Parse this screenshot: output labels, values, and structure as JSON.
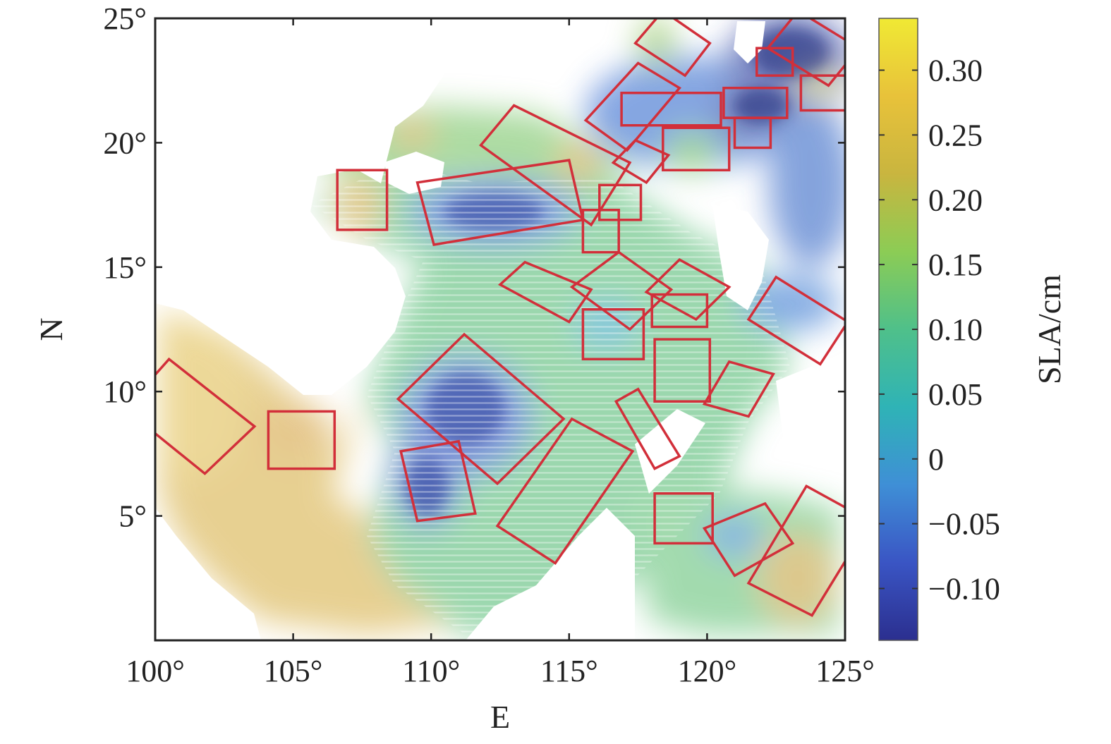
{
  "chart_data": {
    "type": "heatmap",
    "title": "",
    "xlabel": "E",
    "ylabel": "N",
    "xlim": [
      100,
      125
    ],
    "ylim": [
      0,
      25
    ],
    "x_ticks": [
      {
        "value": 100,
        "label": "100°"
      },
      {
        "value": 105,
        "label": "105°"
      },
      {
        "value": 110,
        "label": "110°"
      },
      {
        "value": 115,
        "label": "115°"
      },
      {
        "value": 120,
        "label": "120°"
      },
      {
        "value": 125,
        "label": "125°"
      }
    ],
    "y_ticks": [
      {
        "value": 5,
        "label": "5°"
      },
      {
        "value": 10,
        "label": "10°"
      },
      {
        "value": 15,
        "label": "15°"
      },
      {
        "value": 20,
        "label": "20°"
      },
      {
        "value": 25,
        "label": "25°"
      }
    ],
    "colorbar": {
      "label": "SLA/cm",
      "range": [
        -0.14,
        0.34
      ],
      "ticks": [
        {
          "value": 0.3,
          "label": "0.30"
        },
        {
          "value": 0.25,
          "label": "0.25"
        },
        {
          "value": 0.2,
          "label": "0.20"
        },
        {
          "value": 0.15,
          "label": "0.15"
        },
        {
          "value": 0.1,
          "label": "0.10"
        },
        {
          "value": 0.05,
          "label": "0.05"
        },
        {
          "value": 0,
          "label": "0"
        },
        {
          "value": -0.05,
          "label": "−0.05"
        },
        {
          "value": -0.1,
          "label": "−0.10"
        }
      ],
      "colormap": [
        "#2b2f8f",
        "#3a55c4",
        "#3f8fd6",
        "#2fb3b6",
        "#4fc08a",
        "#8ccc55",
        "#c9b53f",
        "#e8c23a",
        "#f0e934"
      ]
    },
    "eddy_box_color": "#d22f3a",
    "eddy_boxes": [
      {
        "corners": [
          [
            118.4,
            25.3
          ],
          [
            120.1,
            24.0
          ],
          [
            119.2,
            22.7
          ],
          [
            117.4,
            24.0
          ]
        ]
      },
      {
        "corners": [
          [
            123.3,
            25.3
          ],
          [
            125.5,
            23.8
          ],
          [
            124.4,
            22.3
          ],
          [
            122.2,
            23.8
          ]
        ]
      },
      {
        "corners": [
          [
            121.8,
            23.8
          ],
          [
            123.1,
            23.8
          ],
          [
            123.1,
            22.7
          ],
          [
            121.8,
            22.7
          ]
        ]
      },
      {
        "corners": [
          [
            123.4,
            22.7
          ],
          [
            125.2,
            22.7
          ],
          [
            125.2,
            21.3
          ],
          [
            123.4,
            21.3
          ]
        ]
      },
      {
        "corners": [
          [
            117.5,
            23.2
          ],
          [
            119.0,
            22.2
          ],
          [
            117.1,
            19.7
          ],
          [
            115.6,
            20.9
          ]
        ]
      },
      {
        "corners": [
          [
            116.9,
            22.0
          ],
          [
            120.5,
            22.0
          ],
          [
            120.5,
            20.7
          ],
          [
            116.9,
            20.7
          ]
        ]
      },
      {
        "corners": [
          [
            120.6,
            22.2
          ],
          [
            122.9,
            22.2
          ],
          [
            122.9,
            21.0
          ],
          [
            120.6,
            21.0
          ]
        ]
      },
      {
        "corners": [
          [
            121.0,
            21.0
          ],
          [
            122.3,
            21.0
          ],
          [
            122.3,
            19.8
          ],
          [
            121.0,
            19.8
          ]
        ]
      },
      {
        "corners": [
          [
            118.4,
            20.6
          ],
          [
            120.8,
            20.6
          ],
          [
            120.8,
            18.9
          ],
          [
            118.4,
            18.9
          ]
        ]
      },
      {
        "corners": [
          [
            113.0,
            21.5
          ],
          [
            117.2,
            19.2
          ],
          [
            115.8,
            16.7
          ],
          [
            111.8,
            19.9
          ]
        ]
      },
      {
        "corners": [
          [
            117.4,
            20.1
          ],
          [
            118.6,
            19.5
          ],
          [
            117.8,
            18.4
          ],
          [
            116.6,
            19.2
          ]
        ]
      },
      {
        "corners": [
          [
            116.1,
            18.3
          ],
          [
            117.6,
            18.3
          ],
          [
            117.6,
            16.9
          ],
          [
            116.1,
            16.9
          ]
        ]
      },
      {
        "corners": [
          [
            115.5,
            17.3
          ],
          [
            116.8,
            17.3
          ],
          [
            116.8,
            15.6
          ],
          [
            115.5,
            15.6
          ]
        ]
      },
      {
        "corners": [
          [
            109.5,
            18.4
          ],
          [
            115.0,
            19.3
          ],
          [
            115.5,
            16.9
          ],
          [
            110.1,
            15.9
          ]
        ]
      },
      {
        "corners": [
          [
            106.6,
            18.9
          ],
          [
            108.4,
            18.9
          ],
          [
            108.4,
            16.5
          ],
          [
            106.6,
            16.5
          ]
        ]
      },
      {
        "corners": [
          [
            113.4,
            15.2
          ],
          [
            115.8,
            14.1
          ],
          [
            115.0,
            12.8
          ],
          [
            112.5,
            14.3
          ]
        ]
      },
      {
        "corners": [
          [
            116.8,
            15.6
          ],
          [
            118.7,
            14.1
          ],
          [
            117.2,
            12.5
          ],
          [
            115.1,
            14.2
          ]
        ]
      },
      {
        "corners": [
          [
            119.0,
            15.3
          ],
          [
            120.8,
            14.2
          ],
          [
            119.6,
            12.9
          ],
          [
            117.8,
            14.0
          ]
        ]
      },
      {
        "corners": [
          [
            118.0,
            13.9
          ],
          [
            120.0,
            13.9
          ],
          [
            120.0,
            12.6
          ],
          [
            118.0,
            12.6
          ]
        ]
      },
      {
        "corners": [
          [
            115.5,
            13.3
          ],
          [
            117.7,
            13.3
          ],
          [
            117.7,
            11.3
          ],
          [
            115.5,
            11.3
          ]
        ]
      },
      {
        "corners": [
          [
            122.5,
            14.6
          ],
          [
            125.1,
            12.8
          ],
          [
            124.1,
            11.1
          ],
          [
            121.5,
            12.9
          ]
        ]
      },
      {
        "corners": [
          [
            118.1,
            12.1
          ],
          [
            120.1,
            12.1
          ],
          [
            120.1,
            9.6
          ],
          [
            118.1,
            9.6
          ]
        ]
      },
      {
        "corners": [
          [
            120.8,
            11.2
          ],
          [
            122.4,
            10.7
          ],
          [
            121.5,
            9.0
          ],
          [
            119.9,
            9.5
          ]
        ]
      },
      {
        "corners": [
          [
            111.2,
            12.3
          ],
          [
            114.8,
            8.9
          ],
          [
            112.4,
            6.3
          ],
          [
            108.8,
            9.7
          ]
        ]
      },
      {
        "corners": [
          [
            100.5,
            11.3
          ],
          [
            103.6,
            8.6
          ],
          [
            101.8,
            6.7
          ],
          [
            98.9,
            9.3
          ]
        ]
      },
      {
        "corners": [
          [
            104.1,
            9.2
          ],
          [
            106.5,
            9.2
          ],
          [
            106.5,
            6.9
          ],
          [
            104.1,
            6.9
          ]
        ]
      },
      {
        "corners": [
          [
            108.9,
            7.6
          ],
          [
            111.0,
            8.0
          ],
          [
            111.6,
            5.1
          ],
          [
            109.5,
            4.8
          ]
        ]
      },
      {
        "corners": [
          [
            116.7,
            9.6
          ],
          [
            117.5,
            10.1
          ],
          [
            119.0,
            7.4
          ],
          [
            118.1,
            6.9
          ]
        ]
      },
      {
        "corners": [
          [
            115.1,
            8.9
          ],
          [
            117.3,
            7.6
          ],
          [
            114.5,
            3.1
          ],
          [
            112.4,
            4.6
          ]
        ]
      },
      {
        "corners": [
          [
            118.1,
            5.9
          ],
          [
            120.2,
            5.9
          ],
          [
            120.2,
            3.9
          ],
          [
            118.1,
            3.9
          ]
        ]
      },
      {
        "corners": [
          [
            119.9,
            4.5
          ],
          [
            122.1,
            5.5
          ],
          [
            123.1,
            3.9
          ],
          [
            121.0,
            2.6
          ]
        ]
      },
      {
        "corners": [
          [
            123.6,
            6.2
          ],
          [
            125.9,
            4.8
          ],
          [
            123.8,
            1.0
          ],
          [
            121.5,
            2.3
          ]
        ]
      }
    ]
  }
}
